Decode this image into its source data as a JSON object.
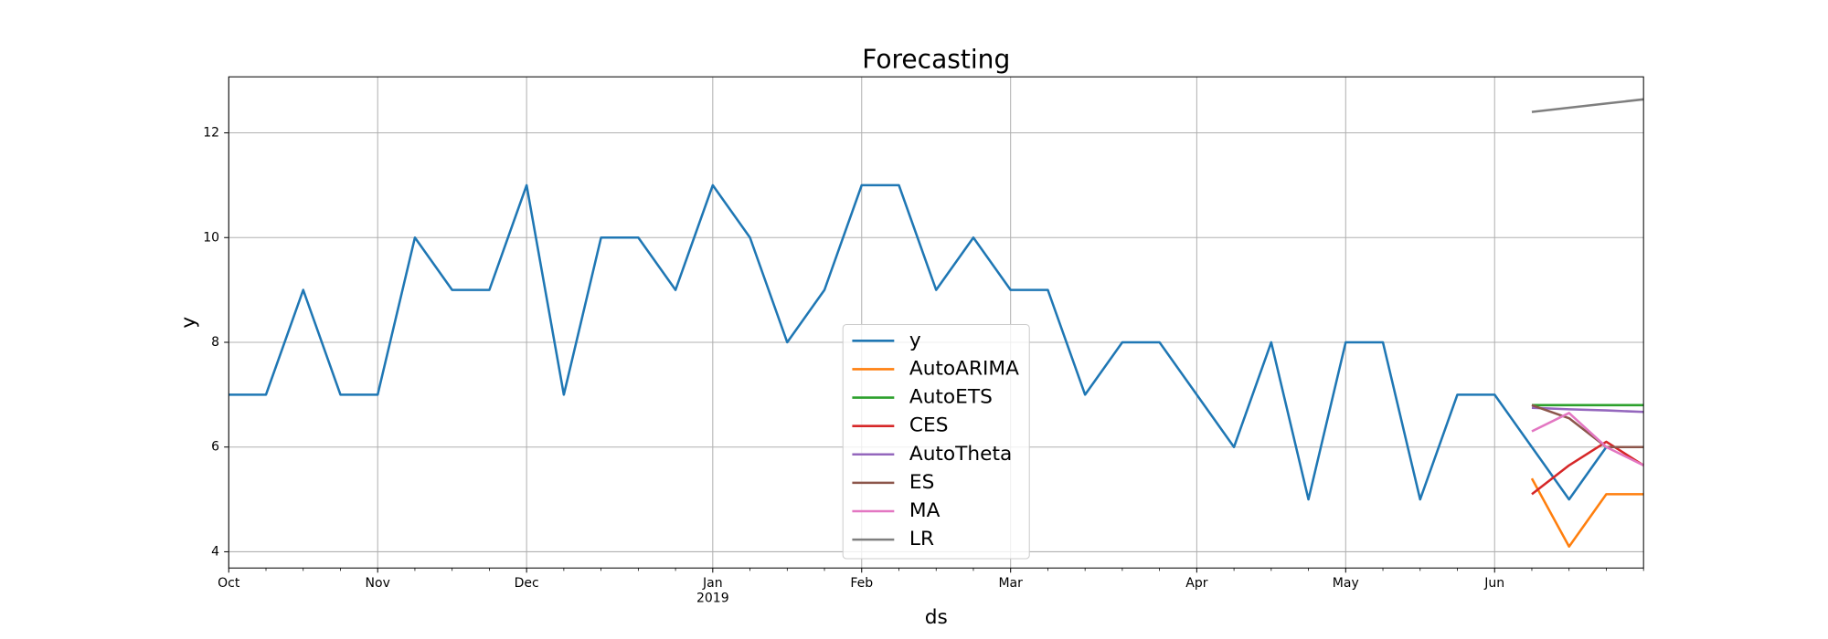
{
  "chart_data": {
    "type": "line",
    "title": "Forecasting",
    "xlabel": "ds",
    "ylabel": "y",
    "categories": [
      "Oct",
      null,
      null,
      null,
      "Nov",
      null,
      null,
      null,
      "Dec",
      null,
      null,
      null,
      null,
      "Jan\n2019",
      null,
      null,
      null,
      "Feb",
      null,
      null,
      null,
      "Mar",
      null,
      null,
      null,
      null,
      "Apr",
      null,
      null,
      null,
      "May",
      null,
      null,
      null,
      "Jun",
      null,
      null,
      null,
      null
    ],
    "series": [
      {
        "name": "y",
        "color": "#1f77b4",
        "values": [
          7,
          7,
          9,
          7,
          7,
          10,
          9,
          9,
          11,
          7,
          10,
          10,
          9,
          11,
          10,
          8,
          9,
          11,
          11,
          9,
          10,
          9,
          9,
          7,
          8,
          8,
          7,
          6,
          8,
          5,
          8,
          8,
          5,
          7,
          7,
          6,
          5,
          6,
          6
        ]
      },
      {
        "name": "AutoARIMA",
        "color": "#ff7f0e",
        "values": [
          null,
          null,
          null,
          null,
          null,
          null,
          null,
          null,
          null,
          null,
          null,
          null,
          null,
          null,
          null,
          null,
          null,
          null,
          null,
          null,
          null,
          null,
          null,
          null,
          null,
          null,
          null,
          null,
          null,
          null,
          null,
          null,
          null,
          null,
          null,
          5.4,
          4.1,
          5.1,
          5.1
        ]
      },
      {
        "name": "AutoETS",
        "color": "#2ca02c",
        "values": [
          null,
          null,
          null,
          null,
          null,
          null,
          null,
          null,
          null,
          null,
          null,
          null,
          null,
          null,
          null,
          null,
          null,
          null,
          null,
          null,
          null,
          null,
          null,
          null,
          null,
          null,
          null,
          null,
          null,
          null,
          null,
          null,
          null,
          null,
          null,
          6.8,
          6.8,
          6.8,
          6.8
        ]
      },
      {
        "name": "CES",
        "color": "#d62728",
        "values": [
          null,
          null,
          null,
          null,
          null,
          null,
          null,
          null,
          null,
          null,
          null,
          null,
          null,
          null,
          null,
          null,
          null,
          null,
          null,
          null,
          null,
          null,
          null,
          null,
          null,
          null,
          null,
          null,
          null,
          null,
          null,
          null,
          null,
          null,
          null,
          5.1,
          5.65,
          6.1,
          5.65
        ]
      },
      {
        "name": "AutoTheta",
        "color": "#9467bd",
        "values": [
          null,
          null,
          null,
          null,
          null,
          null,
          null,
          null,
          null,
          null,
          null,
          null,
          null,
          null,
          null,
          null,
          null,
          null,
          null,
          null,
          null,
          null,
          null,
          null,
          null,
          null,
          null,
          null,
          null,
          null,
          null,
          null,
          null,
          null,
          null,
          6.75,
          6.72,
          6.7,
          6.67
        ]
      },
      {
        "name": "ES",
        "color": "#8c564b",
        "values": [
          null,
          null,
          null,
          null,
          null,
          null,
          null,
          null,
          null,
          null,
          null,
          null,
          null,
          null,
          null,
          null,
          null,
          null,
          null,
          null,
          null,
          null,
          null,
          null,
          null,
          null,
          null,
          null,
          null,
          null,
          null,
          null,
          null,
          null,
          null,
          6.8,
          6.55,
          6.0,
          6.0
        ]
      },
      {
        "name": "MA",
        "color": "#e377c2",
        "values": [
          null,
          null,
          null,
          null,
          null,
          null,
          null,
          null,
          null,
          null,
          null,
          null,
          null,
          null,
          null,
          null,
          null,
          null,
          null,
          null,
          null,
          null,
          null,
          null,
          null,
          null,
          null,
          null,
          null,
          null,
          null,
          null,
          null,
          null,
          null,
          6.3,
          6.65,
          6.0,
          5.65
        ]
      },
      {
        "name": "LR",
        "color": "#7f7f7f",
        "values": [
          null,
          null,
          null,
          null,
          null,
          null,
          null,
          null,
          null,
          null,
          null,
          null,
          null,
          null,
          null,
          null,
          null,
          null,
          null,
          null,
          null,
          null,
          null,
          null,
          null,
          null,
          null,
          null,
          null,
          null,
          null,
          null,
          null,
          null,
          null,
          12.4,
          12.48,
          12.56,
          12.64
        ]
      }
    ],
    "ylim": [
      3.69,
      13.07
    ],
    "yticks": [
      4,
      6,
      8,
      10,
      12
    ],
    "grid": true,
    "legend_loc": "lower center"
  }
}
